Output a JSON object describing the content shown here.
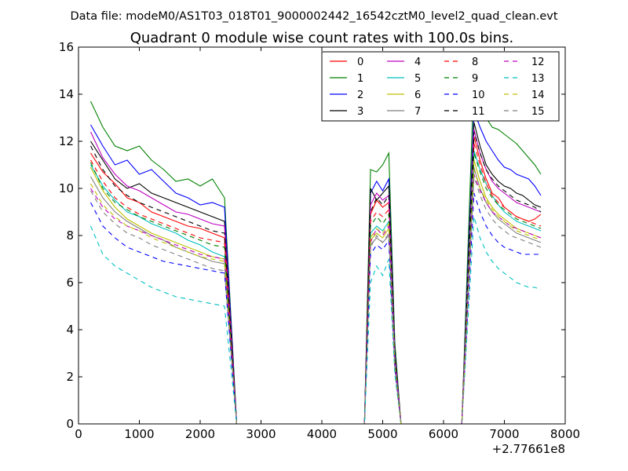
{
  "figure": {
    "suptitle": "Data file: modeM0/AS1T03_018T01_9000002442_16542cztM0_level2_quad_clean.evt"
  },
  "chart_data": {
    "type": "line",
    "title": "Quadrant 0 module wise count rates with 100.0s bins.",
    "xlabel": "",
    "ylabel": "",
    "x_offset_label": "+2.77661e8",
    "xlim": [
      0,
      8000
    ],
    "ylim": [
      0,
      16
    ],
    "xticks": [
      "0",
      "1000",
      "2000",
      "3000",
      "4000",
      "5000",
      "6000",
      "7000",
      "8000"
    ],
    "yticks": [
      "0",
      "2",
      "4",
      "6",
      "8",
      "10",
      "12",
      "14",
      "16"
    ],
    "grid": false,
    "legend_position": "top-right",
    "legend_columns": 4,
    "segments": [
      {
        "x_start": 200,
        "x_step": 50,
        "x_end": 2400
      },
      {
        "x_start": 4800,
        "x_step": 50,
        "x_end": 5100
      },
      {
        "x_start": 6500,
        "x_step": 50,
        "x_end": 7600
      }
    ],
    "zero_range": {
      "x_start": 2600,
      "x_end": 6300
    },
    "series": [
      {
        "name": "0",
        "color": "#ff0000",
        "dash": "solid",
        "seg1": [
          11.5,
          10.7,
          10.2,
          9.6,
          9.4,
          9.0,
          8.8,
          8.6,
          8.4,
          8.3,
          8.1,
          7.9
        ],
        "seg2": [
          8.9,
          9.5,
          9.2,
          9.4
        ],
        "seg3": [
          12.2,
          11.2,
          10.4,
          9.8,
          9.6,
          9.2,
          9.0,
          8.8,
          8.7,
          8.6,
          8.7,
          8.9
        ]
      },
      {
        "name": "1",
        "color": "#008000",
        "dash": "solid",
        "seg1": [
          13.7,
          12.6,
          11.8,
          11.6,
          11.8,
          11.2,
          10.8,
          10.3,
          10.4,
          10.1,
          10.4,
          9.6
        ],
        "seg2": [
          10.8,
          10.7,
          11.0,
          11.5
        ],
        "seg3": [
          14.8,
          13.5,
          13.0,
          12.6,
          12.5,
          12.3,
          12.1,
          11.9,
          11.6,
          11.3,
          11.0,
          10.6
        ]
      },
      {
        "name": "2",
        "color": "#0000ff",
        "dash": "solid",
        "seg1": [
          12.7,
          11.8,
          11.0,
          11.2,
          10.6,
          10.8,
          10.3,
          9.8,
          9.6,
          9.3,
          9.4,
          9.2
        ],
        "seg2": [
          9.8,
          10.3,
          9.9,
          10.4
        ],
        "seg3": [
          13.3,
          12.6,
          12.0,
          11.6,
          11.2,
          10.9,
          10.8,
          10.6,
          10.5,
          10.4,
          10.1,
          9.7
        ]
      },
      {
        "name": "3",
        "color": "#000000",
        "dash": "solid",
        "seg1": [
          12.0,
          11.2,
          10.4,
          10.0,
          10.2,
          9.8,
          9.6,
          9.4,
          9.2,
          9.0,
          8.8,
          8.6
        ],
        "seg2": [
          10.0,
          9.5,
          9.8,
          10.1
        ],
        "seg3": [
          12.8,
          11.8,
          11.0,
          10.6,
          10.3,
          10.1,
          10.0,
          9.8,
          9.7,
          9.5,
          9.3,
          9.2
        ]
      },
      {
        "name": "4",
        "color": "#bf00bf",
        "dash": "solid",
        "seg1": [
          12.4,
          11.3,
          10.6,
          10.1,
          9.9,
          9.6,
          9.3,
          9.0,
          8.9,
          8.7,
          8.5,
          8.4
        ],
        "seg2": [
          9.3,
          9.8,
          9.5,
          9.7
        ],
        "seg3": [
          12.5,
          11.5,
          10.8,
          10.3,
          10.0,
          9.8,
          9.6,
          9.4,
          9.3,
          9.2,
          9.1,
          9.0
        ]
      },
      {
        "name": "5",
        "color": "#00bfbf",
        "dash": "solid",
        "seg1": [
          11.0,
          10.1,
          9.5,
          9.0,
          8.8,
          8.5,
          8.3,
          8.1,
          7.8,
          7.6,
          7.3,
          7.1
        ],
        "seg2": [
          8.1,
          8.4,
          8.2,
          8.6
        ],
        "seg3": [
          11.6,
          10.8,
          10.2,
          9.7,
          9.3,
          9.0,
          8.8,
          8.6,
          8.5,
          8.4,
          8.3,
          8.2
        ]
      },
      {
        "name": "6",
        "color": "#bfbf00",
        "dash": "solid",
        "seg1": [
          10.9,
          9.9,
          9.2,
          8.7,
          8.4,
          8.1,
          7.9,
          7.7,
          7.5,
          7.3,
          7.1,
          7.0
        ],
        "seg2": [
          7.8,
          8.1,
          7.9,
          8.3
        ],
        "seg3": [
          11.2,
          10.3,
          9.6,
          9.2,
          8.9,
          8.7,
          8.5,
          8.3,
          8.2,
          8.1,
          8.0,
          7.9
        ]
      },
      {
        "name": "7",
        "color": "#808080",
        "dash": "solid",
        "seg1": [
          10.5,
          9.6,
          9.0,
          8.6,
          8.3,
          8.0,
          7.8,
          7.5,
          7.3,
          7.1,
          6.9,
          6.8
        ],
        "seg2": [
          7.6,
          7.9,
          7.7,
          8.0
        ],
        "seg3": [
          10.9,
          10.0,
          9.4,
          9.0,
          8.7,
          8.5,
          8.3,
          8.1,
          8.0,
          7.9,
          7.8,
          7.7
        ]
      },
      {
        "name": "8",
        "color": "#ff0000",
        "dash": "dashed",
        "seg1": [
          11.2,
          10.3,
          9.6,
          9.2,
          8.9,
          8.7,
          8.5,
          8.3,
          8.1,
          7.9,
          7.8,
          7.7
        ],
        "seg2": [
          8.6,
          9.0,
          8.8,
          9.1
        ],
        "seg3": [
          11.9,
          11.0,
          10.2,
          9.7,
          9.4,
          9.2,
          9.0,
          8.8,
          8.7,
          8.6,
          8.5,
          8.4
        ]
      },
      {
        "name": "9",
        "color": "#008000",
        "dash": "dashed",
        "seg1": [
          11.1,
          10.0,
          9.4,
          9.1,
          8.8,
          8.6,
          8.4,
          8.2,
          8.0,
          7.8,
          7.6,
          7.5
        ],
        "seg2": [
          8.4,
          8.8,
          8.5,
          8.9
        ],
        "seg3": [
          11.5,
          10.7,
          10.0,
          9.6,
          9.3,
          9.1,
          8.9,
          8.7,
          8.6,
          8.5,
          8.4,
          8.3
        ]
      },
      {
        "name": "10",
        "color": "#0000ff",
        "dash": "dashed",
        "seg1": [
          9.4,
          8.4,
          7.9,
          7.5,
          7.3,
          7.1,
          6.9,
          6.8,
          6.7,
          6.6,
          6.5,
          6.4
        ],
        "seg2": [
          7.2,
          7.6,
          7.4,
          7.8
        ],
        "seg3": [
          9.8,
          9.0,
          8.4,
          8.0,
          7.7,
          7.5,
          7.4,
          7.3,
          7.2,
          7.2,
          7.2,
          7.2
        ]
      },
      {
        "name": "11",
        "color": "#000000",
        "dash": "dashed",
        "seg1": [
          11.8,
          10.8,
          10.1,
          9.7,
          9.4,
          9.2,
          9.0,
          8.8,
          8.6,
          8.4,
          8.2,
          8.1
        ],
        "seg2": [
          9.0,
          9.6,
          9.3,
          9.7
        ],
        "seg3": [
          12.4,
          11.5,
          10.8,
          10.4,
          10.1,
          9.9,
          9.7,
          9.5,
          9.4,
          9.3,
          9.2,
          9.0
        ]
      },
      {
        "name": "12",
        "color": "#bf00bf",
        "dash": "dashed",
        "seg1": [
          10.0,
          9.2,
          8.7,
          8.4,
          8.2,
          8.0,
          7.8,
          7.6,
          7.4,
          7.2,
          7.1,
          7.0
        ],
        "seg2": [
          7.7,
          8.3,
          8.0,
          8.4
        ],
        "seg3": [
          10.6,
          9.9,
          9.4,
          9.0,
          8.8,
          8.6,
          8.4,
          8.3,
          8.2,
          8.1,
          8.0,
          7.9
        ]
      },
      {
        "name": "13",
        "color": "#00bfbf",
        "dash": "dashed",
        "seg1": [
          8.4,
          7.2,
          6.7,
          6.4,
          6.1,
          5.8,
          5.6,
          5.4,
          5.3,
          5.2,
          5.1,
          5.0
        ],
        "seg2": [
          6.0,
          6.7,
          6.3,
          7.0
        ],
        "seg3": [
          8.8,
          7.9,
          7.3,
          6.9,
          6.6,
          6.4,
          6.2,
          6.0,
          5.9,
          5.8,
          5.8,
          5.7
        ]
      },
      {
        "name": "14",
        "color": "#bfbf00",
        "dash": "dashed",
        "seg1": [
          10.2,
          9.3,
          8.8,
          8.4,
          8.2,
          7.9,
          7.7,
          7.5,
          7.3,
          7.1,
          7.0,
          6.9
        ],
        "seg2": [
          7.9,
          8.3,
          8.1,
          8.5
        ],
        "seg3": [
          10.8,
          10.0,
          9.5,
          9.1,
          8.8,
          8.6,
          8.4,
          8.2,
          8.1,
          8.0,
          7.9,
          7.8
        ]
      },
      {
        "name": "15",
        "color": "#808080",
        "dash": "dashed",
        "seg1": [
          9.9,
          9.0,
          8.5,
          8.1,
          7.9,
          7.6,
          7.4,
          7.2,
          7.0,
          6.8,
          6.6,
          6.5
        ],
        "seg2": [
          7.5,
          8.0,
          7.7,
          8.1
        ],
        "seg3": [
          10.5,
          9.7,
          9.1,
          8.7,
          8.4,
          8.2,
          8.0,
          7.9,
          7.8,
          7.7,
          7.6,
          7.5
        ]
      }
    ]
  }
}
